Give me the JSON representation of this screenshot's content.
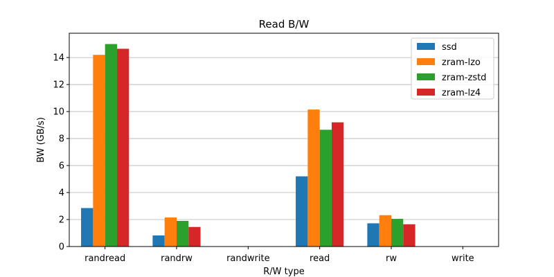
{
  "chart_data": {
    "type": "bar",
    "title": "Read B/W",
    "xlabel": "R/W type",
    "ylabel": "BW (GB/s)",
    "categories": [
      "randread",
      "randrw",
      "randwrite",
      "read",
      "rw",
      "write"
    ],
    "ylim": [
      0,
      15.8
    ],
    "yticks": [
      0,
      2,
      4,
      6,
      8,
      10,
      12,
      14
    ],
    "grid": "y",
    "legend_position": "top-right",
    "series": [
      {
        "name": "ssd",
        "color": "#1f77b4",
        "values": [
          2.85,
          0.82,
          0,
          5.2,
          1.72,
          0
        ]
      },
      {
        "name": "zram-lzo",
        "color": "#ff7f0e",
        "values": [
          14.2,
          2.15,
          0,
          10.15,
          2.32,
          0
        ]
      },
      {
        "name": "zram-zstd",
        "color": "#2ca02c",
        "values": [
          15.0,
          1.9,
          0,
          8.65,
          2.05,
          0
        ]
      },
      {
        "name": "zram-lz4",
        "color": "#d62728",
        "values": [
          14.65,
          1.45,
          0,
          9.2,
          1.65,
          0
        ]
      }
    ]
  }
}
